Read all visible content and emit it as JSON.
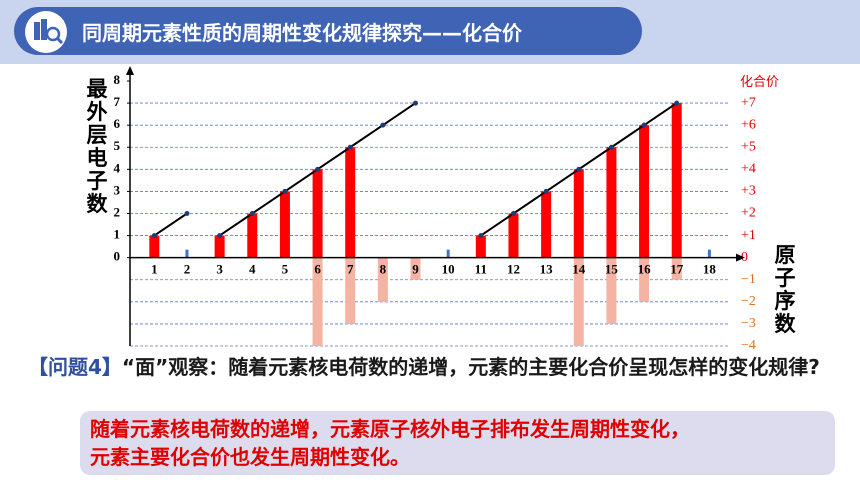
{
  "header": {
    "title": "同周期元素性质的周期性变化规律探究——化合价"
  },
  "chart_data": {
    "type": "combo",
    "y_label": "最外层电子数",
    "y2_label": "化合价",
    "x_label": "原子序数",
    "categories": [
      "1",
      "2",
      "3",
      "4",
      "5",
      "6",
      "7",
      "8",
      "9",
      "10",
      "11",
      "12",
      "13",
      "14",
      "15",
      "16",
      "17",
      "18"
    ],
    "ylim": [
      -4,
      8
    ],
    "yticks": [
      0,
      1,
      2,
      3,
      4,
      5,
      6,
      7,
      8
    ],
    "y2lim": [
      -4,
      8
    ],
    "y2ticks": [
      {
        "value": -4,
        "label": "−4"
      },
      {
        "value": -3,
        "label": "−3"
      },
      {
        "value": -2,
        "label": "−2"
      },
      {
        "value": -1,
        "label": "−1"
      },
      0,
      {
        "value": 1,
        "label": "+1"
      },
      {
        "value": 2,
        "label": "+2"
      },
      {
        "value": 3,
        "label": "+3"
      },
      {
        "value": 4,
        "label": "+4"
      },
      {
        "value": 5,
        "label": "+5"
      },
      {
        "value": 6,
        "label": "+6"
      },
      {
        "value": 7,
        "label": "+7"
      }
    ],
    "grid": true,
    "series": [
      {
        "type": "line",
        "color": "#000000",
        "axis": "y",
        "values": [
          1,
          2,
          1,
          2,
          3,
          4,
          5,
          6,
          7,
          null,
          1,
          2,
          3,
          4,
          5,
          6,
          7,
          null
        ]
      },
      {
        "type": "bar",
        "color": "#ff0000",
        "zero_color": "#4472c4",
        "axis": "y2",
        "values": [
          1,
          0,
          1,
          2,
          3,
          4,
          5,
          null,
          null,
          0,
          1,
          2,
          3,
          4,
          5,
          6,
          7,
          0
        ]
      },
      {
        "type": "bar",
        "color": "#f5b4a3",
        "axis": "y2",
        "values": [
          null,
          null,
          null,
          null,
          null,
          -4,
          -3,
          -2,
          -1,
          null,
          null,
          null,
          null,
          -4,
          -3,
          -2,
          -1,
          null
        ]
      }
    ]
  },
  "question": {
    "label": "【问题4】",
    "text": "“面”观察：随着元素核电荷数的递增，元素的主要化合价呈现怎样的变化规律?"
  },
  "answer": {
    "lines": [
      "随着元素核电荷数的递增，元素原子核外电子排布发生周期性变化，",
      "元素主要化合价也发生周期性变化。"
    ]
  }
}
